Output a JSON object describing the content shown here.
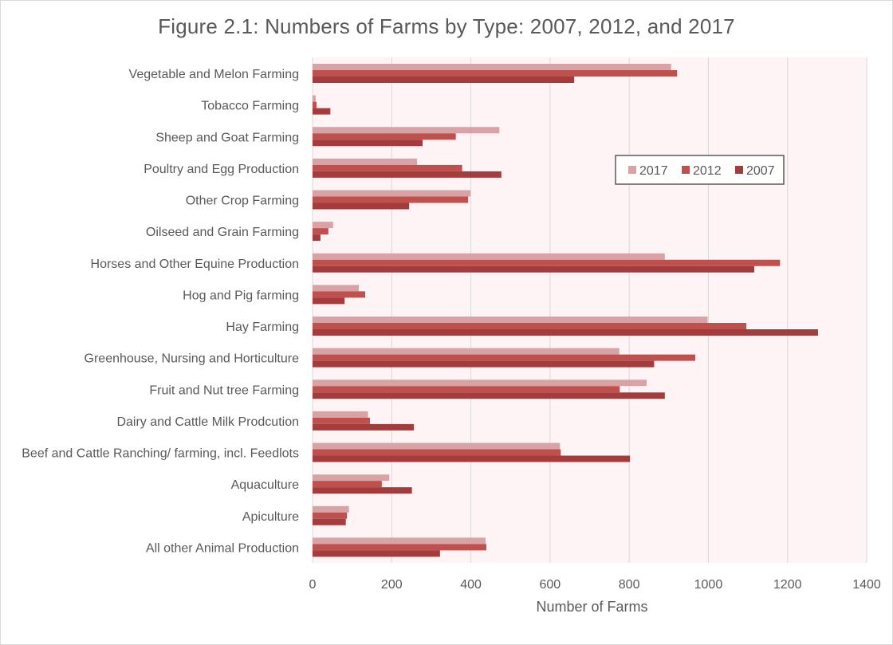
{
  "chart_data": {
    "type": "bar",
    "orientation": "horizontal",
    "title": "Figure 2.1: Numbers of Farms by Type: 2007, 2012, and 2017",
    "xlabel": "Number of Farms",
    "ylabel": "",
    "xlim": [
      0,
      1400
    ],
    "xticks": [
      0,
      200,
      400,
      600,
      800,
      1000,
      1200,
      1400
    ],
    "grid": "vertical",
    "legend_position": "right",
    "categories": [
      "Vegetable and Melon Farming",
      "Tobacco Farming",
      "Sheep and Goat Farming",
      "Poultry and Egg Production",
      "Other Crop Farming",
      "Oilseed and Grain Farming",
      "Horses and Other Equine Production",
      "Hog and Pig farming",
      "Hay Farming",
      "Greenhouse, Nursing and Horticulture",
      "Fruit and Nut tree Farming",
      "Dairy and Cattle Milk Prodcution",
      "Beef and Cattle Ranching/ farming, incl. Feedlots",
      "Aquaculture",
      "Apiculture",
      "All other Animal Production"
    ],
    "series": [
      {
        "name": "2017",
        "color": "#d9a3a6",
        "values": [
          906,
          8,
          472,
          264,
          399,
          52,
          890,
          117,
          998,
          775,
          844,
          140,
          625,
          194,
          92,
          437
        ]
      },
      {
        "name": "2012",
        "color": "#c0504d",
        "values": [
          921,
          10,
          362,
          378,
          393,
          40,
          1181,
          133,
          1096,
          967,
          776,
          145,
          627,
          175,
          87,
          439
        ]
      },
      {
        "name": "2007",
        "color": "#a33c3c",
        "values": [
          661,
          45,
          278,
          477,
          244,
          20,
          1116,
          81,
          1277,
          863,
          890,
          256,
          802,
          251,
          84,
          322
        ]
      }
    ],
    "plot_background": "#fff4f5"
  }
}
